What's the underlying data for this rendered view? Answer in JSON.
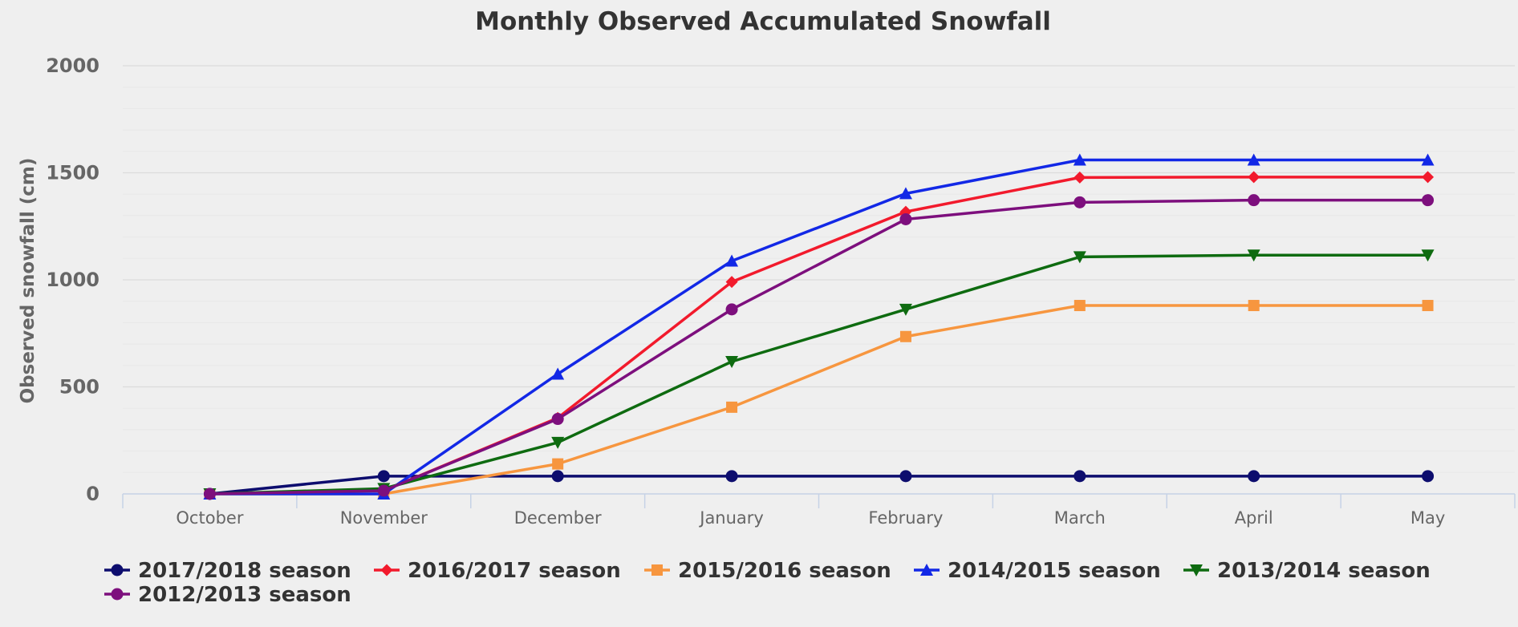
{
  "chart_data": {
    "type": "line",
    "title": "Monthly Observed Accumulated Snowfall",
    "xlabel": "",
    "ylabel": "Observed snowfall (cm)",
    "categories": [
      "October",
      "November",
      "December",
      "January",
      "February",
      "March",
      "April",
      "May"
    ],
    "ylim": [
      0,
      2000
    ],
    "yticks": [
      0,
      500,
      1000,
      1500,
      2000
    ],
    "grid": true,
    "legend_position": "bottom",
    "series": [
      {
        "name": "2017/2018 season",
        "color": "#0d0d6e",
        "marker": "circle",
        "values": [
          0,
          83,
          83,
          83,
          83,
          83,
          83,
          83
        ]
      },
      {
        "name": "2016/2017 season",
        "color": "#f21a2c",
        "marker": "diamond",
        "values": [
          0,
          15,
          355,
          990,
          1318,
          1478,
          1480,
          1480
        ]
      },
      {
        "name": "2015/2016 season",
        "color": "#f7963f",
        "marker": "square",
        "values": [
          0,
          0,
          140,
          405,
          735,
          880,
          880,
          880
        ]
      },
      {
        "name": "2014/2015 season",
        "color": "#1228e6",
        "marker": "triangle-up",
        "values": [
          0,
          0,
          560,
          1088,
          1403,
          1560,
          1560,
          1560
        ]
      },
      {
        "name": "2013/2014 season",
        "color": "#0e6b10",
        "marker": "triangle-down",
        "values": [
          0,
          25,
          240,
          618,
          862,
          1107,
          1115,
          1115
        ]
      },
      {
        "name": "2012/2013 season",
        "color": "#7d0f7d",
        "marker": "circle",
        "values": [
          0,
          15,
          350,
          862,
          1283,
          1362,
          1372,
          1372
        ]
      }
    ]
  }
}
